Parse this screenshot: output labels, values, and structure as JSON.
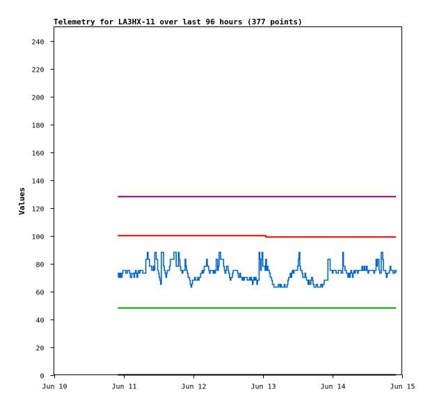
{
  "chart_data": {
    "type": "line",
    "title": "Telemetry for LA3HX-11 over last 96 hours (377 points)",
    "xlabel": "",
    "ylabel": "Values",
    "x_tick_labels": [
      "Jun 10",
      "Jun 11",
      "Jun 12",
      "Jun 13",
      "Jun 14",
      "Jun 15"
    ],
    "xlim": [
      "Jun 10",
      "Jun 15"
    ],
    "ylim": [
      0,
      250
    ],
    "y_ticks": [
      0,
      20,
      40,
      60,
      80,
      100,
      120,
      140,
      160,
      180,
      200,
      220,
      240
    ],
    "grid": false,
    "series": [
      {
        "color": "#800080",
        "x": [
          "Jun 10 22:00",
          "Jun 14 22:00"
        ],
        "values": [
          128,
          128
        ]
      },
      {
        "color": "#e00000",
        "x": [
          "Jun 10 22:00",
          "Jun 13 01:00",
          "Jun 13 01:10",
          "Jun 14 22:00"
        ],
        "values": [
          100,
          100,
          99,
          99
        ]
      },
      {
        "color": "#0066cc",
        "x_start": "Jun 10 22:00",
        "x_end": "Jun 14 22:00",
        "approx_range": [
          63,
          88
        ],
        "typical": 68
      },
      {
        "color": "#00a000",
        "x": [
          "Jun 10 22:00",
          "Jun 14 22:00"
        ],
        "values": [
          48,
          48
        ]
      },
      {
        "color": "#000000",
        "x": [
          "Jun 10 22:00",
          "Jun 14 22:00"
        ],
        "values": [
          0,
          0
        ]
      }
    ]
  }
}
